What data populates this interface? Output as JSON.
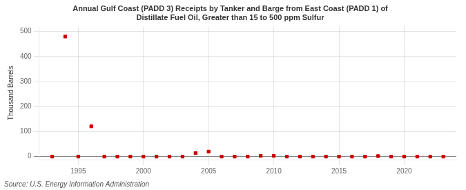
{
  "chart_data": {
    "type": "scatter",
    "title": [
      "Annual Gulf Coast (PADD 3) Receipts by Tanker and Barge from East Coast (PADD 1) of",
      "Distillate Fuel Oil, Greater than 15 to 500 ppm Sulfur"
    ],
    "y_label": "Thousand Barrels",
    "annotations": [
      "Source: U.S. Energy Information Administration"
    ],
    "x": [
      1993,
      1994,
      1995,
      1996,
      1997,
      1998,
      1999,
      2000,
      2001,
      2002,
      2003,
      2004,
      2005,
      2006,
      2007,
      2008,
      2009,
      2010,
      2011,
      2012,
      2013,
      2014,
      2015,
      2016,
      2017,
      2018,
      2019,
      2020,
      2021,
      2022,
      2023
    ],
    "values": [
      0,
      480,
      0,
      121,
      0,
      0,
      0,
      0,
      0,
      0,
      0,
      14,
      20,
      0,
      0,
      0,
      3,
      3,
      0,
      0,
      0,
      0,
      0,
      0,
      0,
      2,
      0,
      0,
      0,
      0,
      0
    ],
    "color": "#cc0000",
    "marker": "square",
    "xlim": [
      1992,
      2024
    ],
    "ylim": [
      -12,
      520
    ],
    "xticks": [
      1995,
      2000,
      2005,
      2010,
      2015,
      2020
    ],
    "yticks": [
      0,
      100,
      200,
      300,
      400,
      500
    ],
    "grid": true
  }
}
